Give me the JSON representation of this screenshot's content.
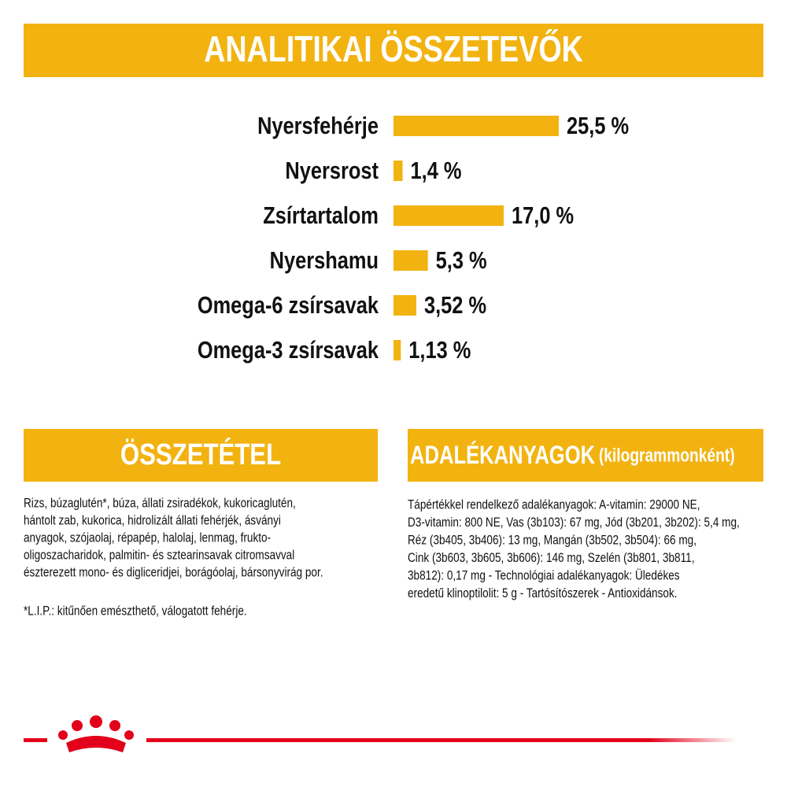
{
  "chart_data": {
    "type": "bar",
    "orientation": "horizontal",
    "title": "ANALITIKAI ÖSSZETEVŐK",
    "categories": [
      "Nyersfehérje",
      "Nyersrost",
      "Zsírtartalom",
      "Nyershamu",
      "Omega-6 zsírsavak",
      "Omega-3 zsírsavak"
    ],
    "values": [
      25.5,
      1.4,
      17.0,
      5.3,
      3.52,
      1.13
    ],
    "value_labels": [
      "25,5 %",
      "1,4 %",
      "17,0 %",
      "5,3 %",
      "3,52 %",
      "1,13 %"
    ],
    "color": "#f2b311"
  },
  "composition": {
    "title": "ÖSSZETÉTEL",
    "lines": [
      "Rizs, búzaglutén*, búza, állati zsiradékok, kukoricaglutén,",
      "hántolt zab, kukorica, hidrolizált állati fehérjék, ásványi",
      "anyagok, szójaolaj, répapép, halolaj, lenmag, frukto-",
      "oligoszacharidok, palmitin- és sztearinsavak citromsavval",
      "észterezett mono- és digliceridjei, borágóolaj, bársonyvirág por."
    ],
    "note": "*L.I.P.: kitűnően emészthető, válogatott fehérje."
  },
  "additives": {
    "title": "ADALÉKANYAGOK",
    "subtitle": "(kilogrammonként)",
    "lines": [
      "Tápértékkel rendelkező adalékanyagok: A-vitamin: 29000 NE,",
      "D3-vitamin: 800 NE, Vas (3b103): 67 mg, Jód (3b201, 3b202): 5,4 mg,",
      "Réz (3b405, 3b406): 13 mg, Mangán (3b502, 3b504): 66 mg,",
      "Cink (3b603, 3b605, 3b606): 146 mg, Szelén (3b801, 3b811,",
      "3b812): 0,17 mg - Technológiai adalékanyagok: Üledékes",
      "eredetű klinoptilolit: 5 g - Tartósítószerek - Antioxidánsok."
    ]
  }
}
